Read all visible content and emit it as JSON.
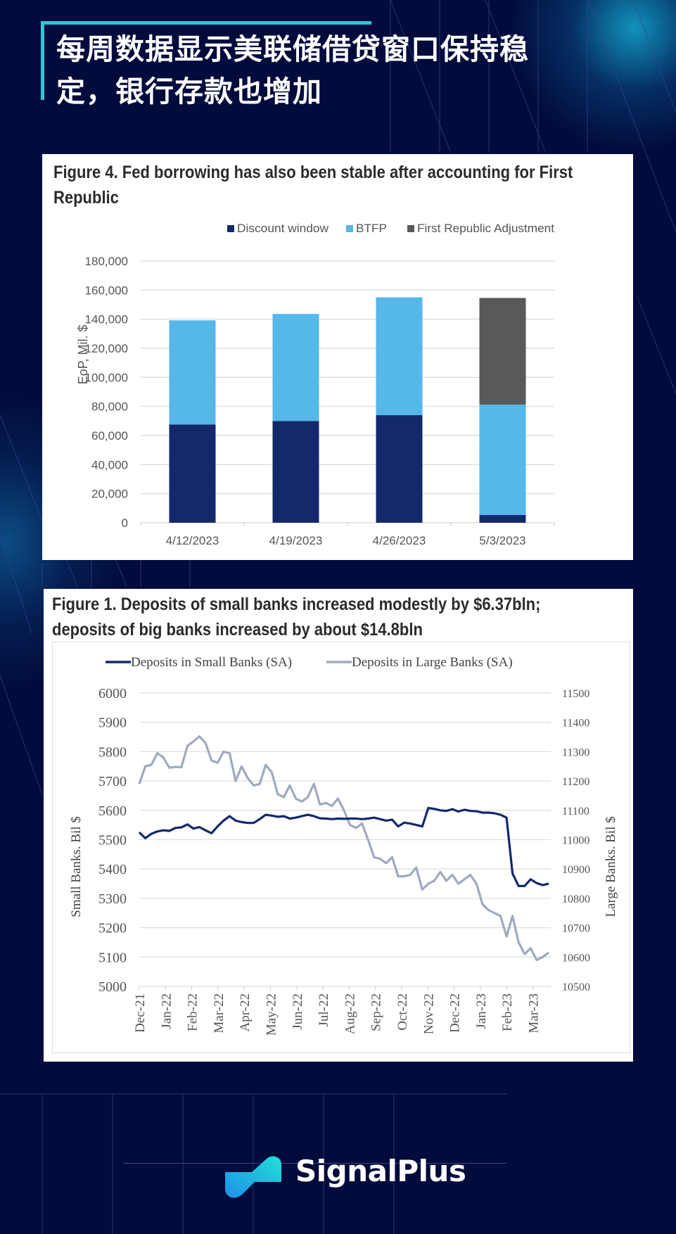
{
  "page": {
    "title": "每周数据显示美联储借贷窗口保持稳定，银行存款也增加",
    "title_line1": "每周数据显示美联储借贷窗口保持稳",
    "title_line2": "定，银行存款也增加",
    "brand": "SignalPlus",
    "logo_icon": "signalplus-logo-icon",
    "colors": {
      "background": "#020b3b",
      "accent": "#2fc6d5",
      "panel": "#ffffff"
    }
  },
  "chart_data": [
    {
      "type": "bar",
      "stacked": true,
      "title": "Figure 4. Fed borrowing has also been stable after accounting for First Republic",
      "title_line1": "Figure 4. Fed borrowing has also been stable after accounting for First",
      "title_line2": "Republic",
      "xlabel": "",
      "ylabel": "EoP, Mil. $",
      "ylim": [
        0,
        180000
      ],
      "yticks": [
        0,
        20000,
        40000,
        60000,
        80000,
        100000,
        120000,
        140000,
        160000,
        180000
      ],
      "ytick_labels": [
        "0",
        "20,000",
        "40,000",
        "60,000",
        "80,000",
        "100,000",
        "120,000",
        "140,000",
        "160,000",
        "180,000"
      ],
      "grid": true,
      "legend_position": "top-center",
      "categories": [
        "4/12/2023",
        "4/19/2023",
        "4/26/2023",
        "5/3/2023"
      ],
      "series": [
        {
          "name": "Discount window",
          "color": "#13296b",
          "values": [
            67600,
            70000,
            74000,
            5300
          ]
        },
        {
          "name": "BTFP",
          "color": "#56b7e9",
          "values": [
            71600,
            73600,
            81000,
            75900
          ]
        },
        {
          "name": "First Republic Adjustment",
          "color": "#58595b",
          "values": [
            0,
            0,
            0,
            73400
          ]
        }
      ]
    },
    {
      "type": "line",
      "title": "Figure 1. Deposits of small banks increased modestly by $6.37bln; deposits of big banks increased by about $14.8bln",
      "title_line1": "Figure 1. Deposits of small banks increased modestly by $6.37bln;",
      "title_line2": "deposits of big banks increased by about $14.8bln",
      "ylabel_left": "Small Banks. Bil $",
      "ylabel_right": "Large Banks. Bil $",
      "ylim_left": [
        5000,
        6000
      ],
      "ylim_right": [
        10500,
        11500
      ],
      "yticks_left": [
        "5000",
        "5100",
        "5200",
        "5300",
        "5400",
        "5500",
        "5600",
        "5700",
        "5800",
        "5900",
        "6000"
      ],
      "yticks_right": [
        "10500",
        "10600",
        "10700",
        "10800",
        "10900",
        "11000",
        "11100",
        "11200",
        "11300",
        "11400",
        "11500"
      ],
      "xtick_labels": [
        "Dec-21",
        "Jan-22",
        "Feb-22",
        "Mar-22",
        "Apr-22",
        "May-22",
        "Jun-22",
        "Jul-22",
        "Aug-22",
        "Sep-22",
        "Oct-22",
        "Nov-22",
        "Dec-22",
        "Jan-23",
        "Feb-23",
        "Mar-23"
      ],
      "grid": true,
      "legend_position": "top-center",
      "frequency": "weekly",
      "series": [
        {
          "name": "Deposits in Small Banks (SA)",
          "axis": "left",
          "color": "#13296b",
          "values": [
            5525,
            5505,
            5520,
            5528,
            5532,
            5530,
            5540,
            5542,
            5552,
            5538,
            5543,
            5532,
            5522,
            5545,
            5565,
            5580,
            5565,
            5560,
            5557,
            5557,
            5570,
            5585,
            5582,
            5578,
            5580,
            5572,
            5575,
            5580,
            5585,
            5580,
            5573,
            5572,
            5570,
            5572,
            5571,
            5572,
            5572,
            5570,
            5572,
            5575,
            5570,
            5565,
            5568,
            5545,
            5558,
            5555,
            5550,
            5545,
            5608,
            5605,
            5600,
            5598,
            5604,
            5596,
            5602,
            5598,
            5597,
            5592,
            5592,
            5590,
            5585,
            5575,
            5385,
            5342,
            5342,
            5365,
            5352,
            5345,
            5350
          ]
        },
        {
          "name": "Deposits in Large Banks (SA)",
          "axis": "right",
          "color": "#9daabf",
          "values": [
            11190,
            11250,
            11255,
            11295,
            11280,
            11245,
            11248,
            11247,
            11320,
            11335,
            11352,
            11330,
            11270,
            11262,
            11300,
            11295,
            11200,
            11250,
            11210,
            11185,
            11190,
            11255,
            11230,
            11155,
            11145,
            11185,
            11140,
            11130,
            11145,
            11190,
            11120,
            11125,
            11115,
            11140,
            11100,
            11050,
            11040,
            11055,
            11000,
            10940,
            10935,
            10920,
            10940,
            10875,
            10875,
            10880,
            10905,
            10830,
            10850,
            10860,
            10890,
            10860,
            10880,
            10850,
            10865,
            10880,
            10850,
            10780,
            10760,
            10750,
            10740,
            10670,
            10740,
            10650,
            10610,
            10630,
            10590,
            10600,
            10615
          ]
        }
      ]
    }
  ]
}
